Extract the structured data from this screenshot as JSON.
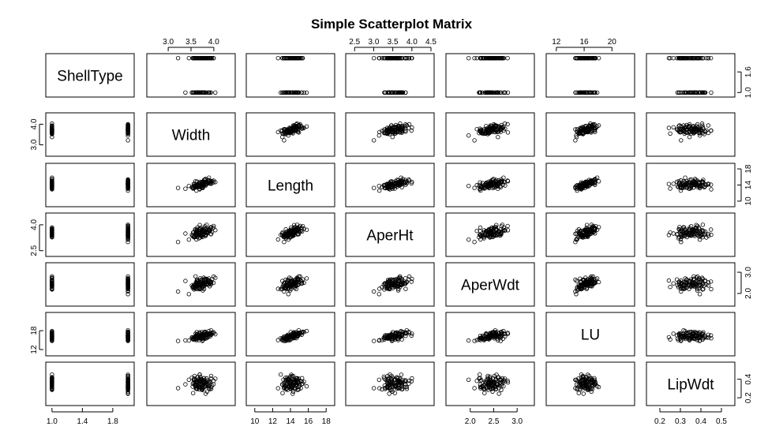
{
  "chart_data": {
    "type": "scatter",
    "title": "Simple Scatterplot Matrix",
    "variables": [
      "ShellType",
      "Width",
      "Length",
      "AperHt",
      "AperWdt",
      "LU",
      "LipWdt"
    ],
    "axes": {
      "ShellType": {
        "ticks": [
          1.0,
          1.4,
          1.8
        ],
        "tick_labels": [
          "1.0",
          "1.4",
          "1.8"
        ],
        "right_ticks": [
          1.0,
          1.6
        ],
        "right_tick_labels": [
          "1.0",
          "1.6"
        ],
        "range": [
          0.96,
          2.04
        ]
      },
      "Width": {
        "ticks": [
          3.0,
          3.5,
          4.0
        ],
        "tick_labels": [
          "3.0",
          "3.5",
          "4.0"
        ],
        "left_tick_labels": [
          "3.0",
          "4.0"
        ],
        "range": [
          2.6,
          4.4
        ]
      },
      "Length": {
        "ticks": [
          10,
          12,
          14,
          16,
          18
        ],
        "tick_labels": [
          "10",
          "12",
          "14",
          "16",
          "18"
        ],
        "right_ticks": [
          10,
          14,
          18
        ],
        "right_tick_labels": [
          "10",
          "14",
          "18"
        ],
        "range": [
          9.4,
          18.6
        ]
      },
      "AperHt": {
        "ticks": [
          2.5,
          3.0,
          3.5,
          4.0,
          4.5
        ],
        "tick_labels": [
          "2.5",
          "3.0",
          "3.5",
          "4.0",
          "4.5"
        ],
        "left_tick_labels": [
          "2.5",
          "4.0"
        ],
        "range": [
          2.35,
          4.5
        ]
      },
      "AperWdt": {
        "ticks": [
          2.0,
          2.5,
          3.0
        ],
        "tick_labels": [
          "2.0",
          "2.5",
          "3.0"
        ],
        "right_ticks": [
          2.0,
          3.0
        ],
        "right_tick_labels": [
          "2.0",
          "3.0"
        ],
        "range": [
          1.55,
          3.3
        ]
      },
      "LU": {
        "ticks": [
          12,
          16,
          20
        ],
        "tick_labels": [
          "12",
          "16",
          "20"
        ],
        "left_ticks": [
          12,
          18
        ],
        "left_tick_labels": [
          "12",
          "18"
        ],
        "range": [
          11.0,
          22.8
        ]
      },
      "LipWdt": {
        "ticks": [
          0.2,
          0.3,
          0.4,
          0.5
        ],
        "tick_labels": [
          "0.2",
          "0.3",
          "0.4",
          "0.5"
        ],
        "right_ticks": [
          0.2,
          0.4
        ],
        "right_tick_labels": [
          "0.2",
          "0.4"
        ],
        "range": [
          0.15,
          0.55
        ]
      }
    },
    "n_points": 100,
    "grid": false,
    "legend": "none"
  }
}
